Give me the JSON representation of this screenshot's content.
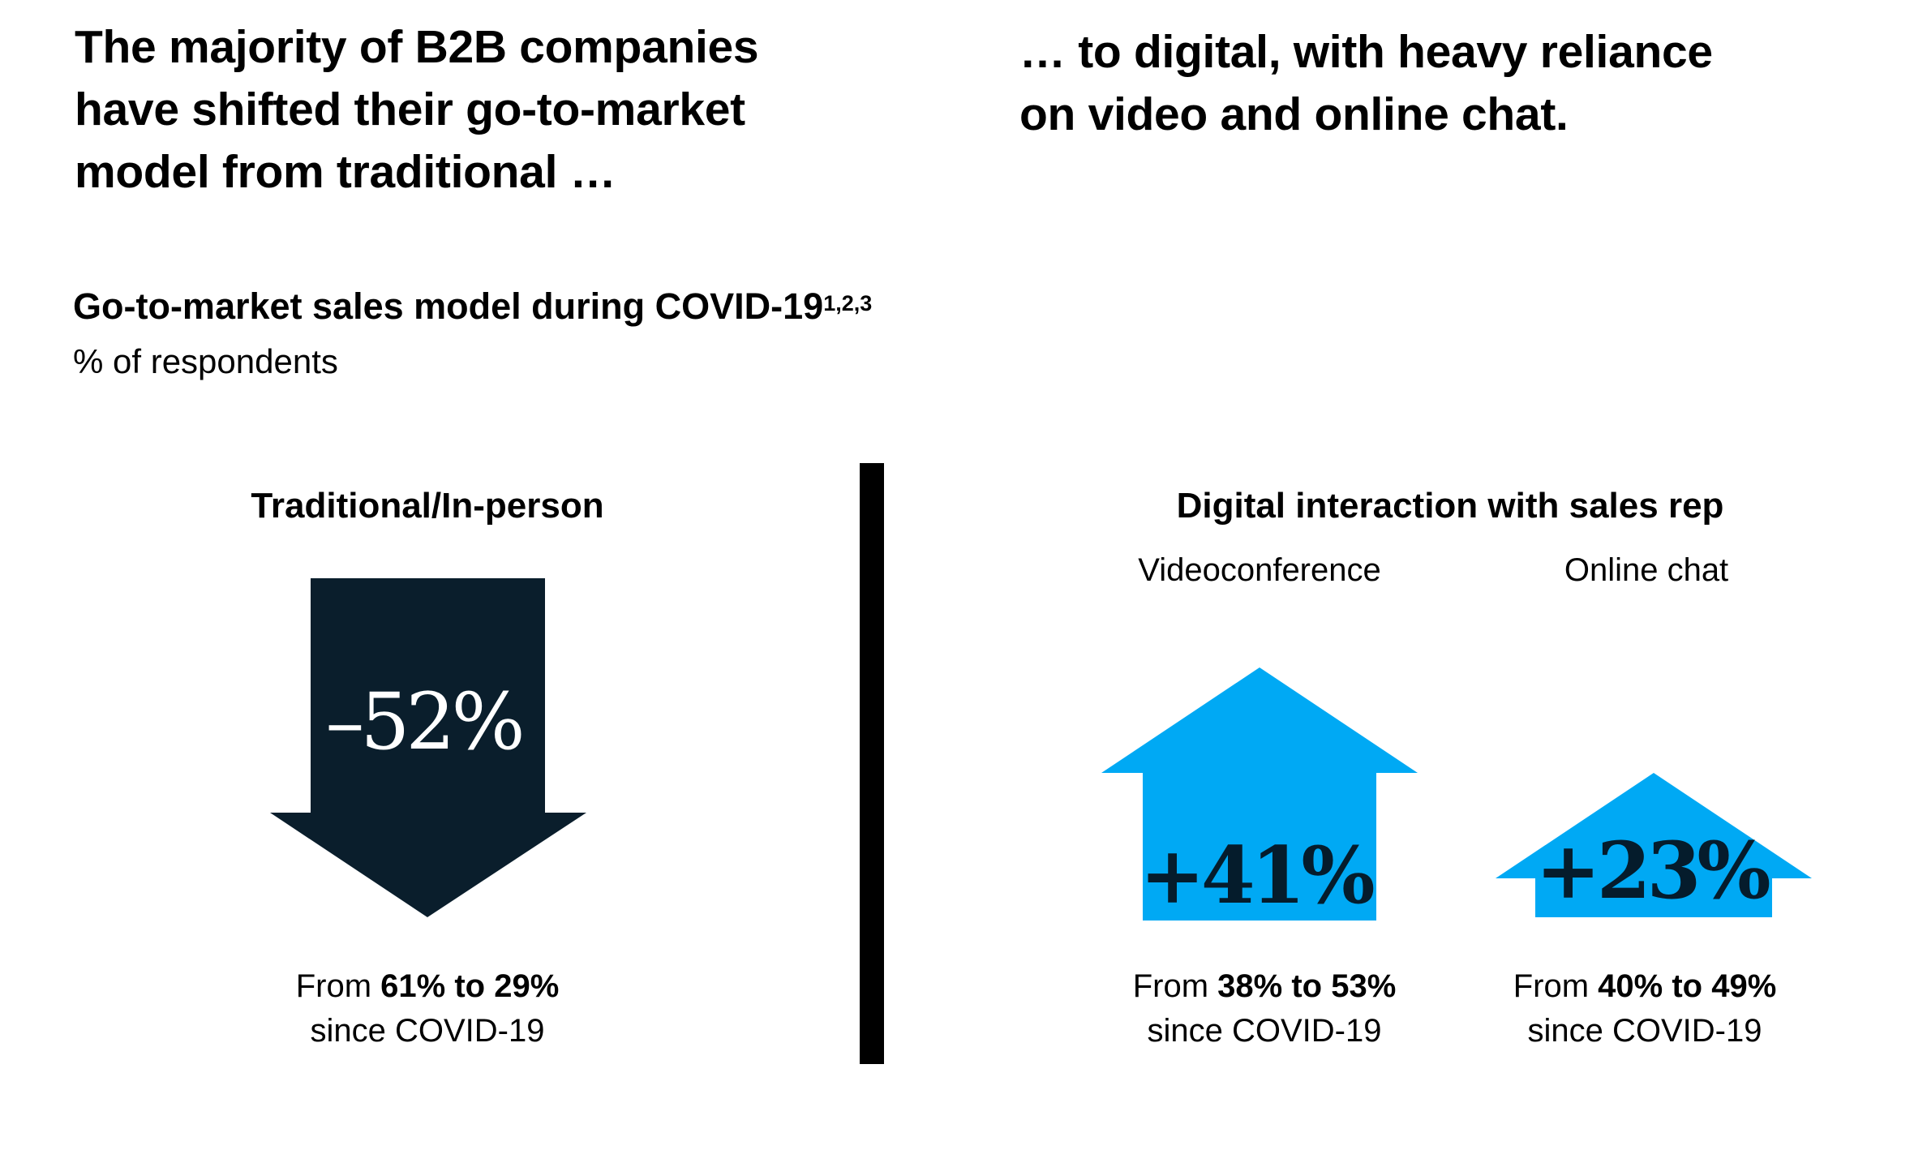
{
  "headline": {
    "left_lines": [
      "The majority of B2B companies",
      "have shifted their go-to-market",
      "model from traditional …"
    ],
    "right_lines": [
      "… to digital, with heavy reliance",
      "on video and online chat."
    ]
  },
  "chart_title": "Go-to-market sales model during COVID-19",
  "chart_title_footnotes": "1,2,3",
  "chart_subtitle": "% of respondents",
  "panels": {
    "traditional": {
      "heading": "Traditional/In-person",
      "change_label": "–52%",
      "from_prefix": "From",
      "from_values": "61% to 29%",
      "since": "since COVID-19"
    },
    "digital": {
      "heading": "Digital interaction with sales rep",
      "video": {
        "label": "Videoconference",
        "change_label": "+41%",
        "from_prefix": "From",
        "from_values": "38% to 53%",
        "since": "since COVID-19"
      },
      "chat": {
        "label": "Online chat",
        "change_label": "+23%",
        "from_prefix": "From",
        "from_values": "40% to 49%",
        "since": "since COVID-19"
      }
    }
  },
  "colors": {
    "down_arrow": "#0a1e2c",
    "up_arrow": "#00a9f4",
    "divider": "#000000",
    "text": "#000000"
  },
  "chart_data": {
    "type": "bar",
    "categories": [
      "Traditional/In-person",
      "Videoconference",
      "Online chat"
    ],
    "series": [
      {
        "name": "",
        "values": [
          61,
          38,
          40
        ]
      },
      {
        "name": "",
        "values": [
          29,
          53,
          49
        ]
      }
    ],
    "change_percent": [
      -52,
      41,
      23
    ],
    "title": "Go-to-market sales model during COVID-19",
    "ylabel": "% of respondents"
  }
}
